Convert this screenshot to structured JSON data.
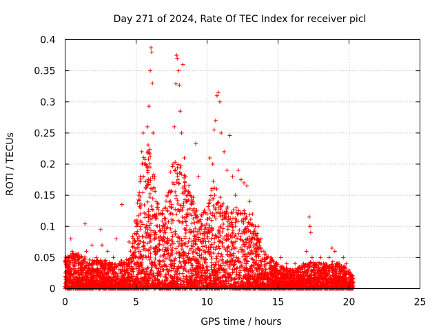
{
  "chart_data": {
    "type": "scatter",
    "title": "Day 271 of 2024, Rate Of TEC Index for receiver picl",
    "xlabel": "GPS time / hours",
    "ylabel": "ROTI / TECUs",
    "xlim": [
      0,
      25
    ],
    "ylim": [
      0,
      0.4
    ],
    "xticks": [
      0,
      5,
      10,
      15,
      20,
      25
    ],
    "xtick_labels": [
      "0",
      "5",
      "10",
      "15",
      "20",
      "25"
    ],
    "yticks": [
      0,
      0.05,
      0.1,
      0.15,
      0.2,
      0.25,
      0.3,
      0.35,
      0.4
    ],
    "ytick_labels": [
      "0",
      "0.05",
      "0.1",
      "0.15",
      "0.2",
      "0.25",
      "0.3",
      "0.35",
      "0.4"
    ],
    "grid": true,
    "marker": "+",
    "color": "#ff0000",
    "series": [
      {
        "name": "ROTI",
        "points": [
          [
            0.0,
            0.02
          ],
          [
            0.1,
            0.005
          ],
          [
            0.2,
            0.03
          ],
          [
            0.3,
            0.05
          ],
          [
            0.4,
            0.08
          ],
          [
            0.5,
            0.06
          ],
          [
            0.6,
            0.02
          ],
          [
            0.8,
            0.04
          ],
          [
            1.0,
            0.05
          ],
          [
            1.2,
            0.03
          ],
          [
            1.4,
            0.104
          ],
          [
            1.5,
            0.06
          ],
          [
            1.7,
            0.04
          ],
          [
            1.9,
            0.07
          ],
          [
            2.0,
            0.02
          ],
          [
            2.2,
            0.05
          ],
          [
            2.4,
            0.03
          ],
          [
            2.5,
            0.095
          ],
          [
            2.6,
            0.07
          ],
          [
            2.8,
            0.04
          ],
          [
            3.0,
            0.06
          ],
          [
            3.2,
            0.03
          ],
          [
            3.4,
            0.05
          ],
          [
            3.5,
            0.02
          ],
          [
            3.6,
            0.08
          ],
          [
            3.8,
            0.04
          ],
          [
            4.0,
            0.135
          ],
          [
            4.1,
            0.04
          ],
          [
            4.3,
            0.03
          ],
          [
            4.5,
            0.075
          ],
          [
            4.7,
            0.05
          ],
          [
            4.9,
            0.04
          ],
          [
            5.0,
            0.1
          ],
          [
            5.1,
            0.08
          ],
          [
            5.2,
            0.15
          ],
          [
            5.3,
            0.18
          ],
          [
            5.4,
            0.22
          ],
          [
            5.5,
            0.25
          ],
          [
            5.6,
            0.2
          ],
          [
            5.7,
            0.12
          ],
          [
            5.8,
            0.26
          ],
          [
            5.9,
            0.293
          ],
          [
            6.0,
            0.35
          ],
          [
            6.05,
            0.387
          ],
          [
            6.1,
            0.38
          ],
          [
            6.15,
            0.33
          ],
          [
            6.2,
            0.25
          ],
          [
            6.3,
            0.18
          ],
          [
            6.4,
            0.14
          ],
          [
            6.5,
            0.1
          ],
          [
            6.6,
            0.12
          ],
          [
            6.8,
            0.08
          ],
          [
            7.0,
            0.1
          ],
          [
            7.2,
            0.15
          ],
          [
            7.4,
            0.12
          ],
          [
            7.6,
            0.2
          ],
          [
            7.7,
            0.26
          ],
          [
            7.8,
            0.329
          ],
          [
            7.85,
            0.375
          ],
          [
            7.9,
            0.37
          ],
          [
            8.0,
            0.35
          ],
          [
            8.05,
            0.327
          ],
          [
            8.1,
            0.285
          ],
          [
            8.2,
            0.25
          ],
          [
            8.3,
            0.36
          ],
          [
            8.4,
            0.21
          ],
          [
            8.5,
            0.18
          ],
          [
            8.6,
            0.15
          ],
          [
            8.8,
            0.12
          ],
          [
            9.0,
            0.14
          ],
          [
            9.2,
            0.233
          ],
          [
            9.4,
            0.18
          ],
          [
            9.6,
            0.1
          ],
          [
            9.8,
            0.08
          ],
          [
            10.0,
            0.12
          ],
          [
            10.2,
            0.21
          ],
          [
            10.4,
            0.2
          ],
          [
            10.5,
            0.255
          ],
          [
            10.6,
            0.27
          ],
          [
            10.7,
            0.31
          ],
          [
            10.8,
            0.315
          ],
          [
            10.9,
            0.3
          ],
          [
            11.0,
            0.25
          ],
          [
            11.2,
            0.22
          ],
          [
            11.4,
            0.19
          ],
          [
            11.6,
            0.246
          ],
          [
            11.8,
            0.18
          ],
          [
            12.0,
            0.15
          ],
          [
            12.2,
            0.19
          ],
          [
            12.4,
            0.175
          ],
          [
            12.6,
            0.17
          ],
          [
            12.8,
            0.165
          ],
          [
            13.0,
            0.14
          ],
          [
            13.2,
            0.12
          ],
          [
            13.4,
            0.1
          ],
          [
            13.6,
            0.1
          ],
          [
            13.8,
            0.08
          ],
          [
            14.0,
            0.06
          ],
          [
            14.2,
            0.05
          ],
          [
            14.4,
            0.04
          ],
          [
            14.6,
            0.03
          ],
          [
            14.8,
            0.04
          ],
          [
            15.0,
            0.03
          ],
          [
            15.2,
            0.05
          ],
          [
            15.4,
            0.02
          ],
          [
            15.6,
            0.04
          ],
          [
            15.8,
            0.03
          ],
          [
            16.0,
            0.03
          ],
          [
            16.2,
            0.04
          ],
          [
            16.4,
            0.02
          ],
          [
            16.6,
            0.03
          ],
          [
            16.8,
            0.04
          ],
          [
            17.0,
            0.06
          ],
          [
            17.2,
            0.115
          ],
          [
            17.25,
            0.1
          ],
          [
            17.3,
            0.09
          ],
          [
            17.4,
            0.05
          ],
          [
            17.6,
            0.04
          ],
          [
            17.8,
            0.03
          ],
          [
            18.0,
            0.05
          ],
          [
            18.2,
            0.04
          ],
          [
            18.4,
            0.03
          ],
          [
            18.6,
            0.05
          ],
          [
            18.8,
            0.065
          ],
          [
            19.0,
            0.06
          ],
          [
            19.2,
            0.04
          ],
          [
            19.4,
            0.03
          ],
          [
            19.6,
            0.05
          ],
          [
            19.8,
            0.04
          ],
          [
            20.0,
            0.03
          ],
          [
            20.2,
            0.02
          ],
          [
            20.3,
            0.01
          ]
        ]
      }
    ],
    "density_profile": [
      [
        0.0,
        0.05
      ],
      [
        0.5,
        0.06
      ],
      [
        1.0,
        0.055
      ],
      [
        1.5,
        0.05
      ],
      [
        2.0,
        0.045
      ],
      [
        2.5,
        0.05
      ],
      [
        3.0,
        0.045
      ],
      [
        3.5,
        0.04
      ],
      [
        4.0,
        0.045
      ],
      [
        4.5,
        0.05
      ],
      [
        5.0,
        0.12
      ],
      [
        5.5,
        0.22
      ],
      [
        6.0,
        0.24
      ],
      [
        6.5,
        0.14
      ],
      [
        7.0,
        0.13
      ],
      [
        7.5,
        0.2
      ],
      [
        8.0,
        0.22
      ],
      [
        8.5,
        0.18
      ],
      [
        9.0,
        0.15
      ],
      [
        9.5,
        0.12
      ],
      [
        10.0,
        0.13
      ],
      [
        10.5,
        0.18
      ],
      [
        11.0,
        0.15
      ],
      [
        11.5,
        0.13
      ],
      [
        12.0,
        0.14
      ],
      [
        12.5,
        0.13
      ],
      [
        13.0,
        0.12
      ],
      [
        13.5,
        0.1
      ],
      [
        14.0,
        0.06
      ],
      [
        14.5,
        0.05
      ],
      [
        15.0,
        0.04
      ],
      [
        15.5,
        0.035
      ],
      [
        16.0,
        0.03
      ],
      [
        16.5,
        0.035
      ],
      [
        17.0,
        0.04
      ],
      [
        17.5,
        0.045
      ],
      [
        18.0,
        0.04
      ],
      [
        18.5,
        0.04
      ],
      [
        19.0,
        0.045
      ],
      [
        19.5,
        0.04
      ],
      [
        20.0,
        0.03
      ],
      [
        20.3,
        0.02
      ]
    ]
  }
}
